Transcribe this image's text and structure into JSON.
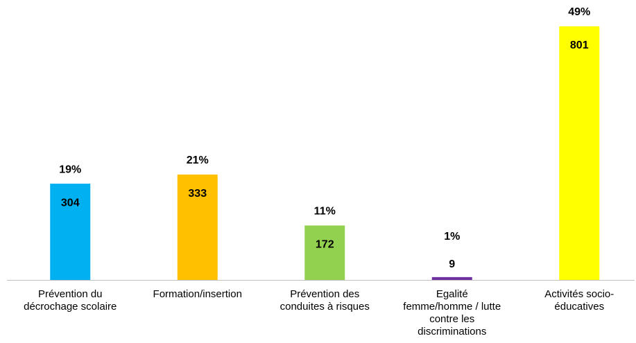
{
  "chart_data": {
    "type": "bar",
    "categories": [
      "Prévention du\ndécrochage scolaire",
      "Formation/insertion",
      "Prévention des\nconduites à risques",
      "Egalité\nfemme/homme / lutte\ncontre les\ndiscriminations",
      "Activités socio-\néducatives"
    ],
    "values": [
      304,
      333,
      172,
      9,
      801
    ],
    "colors": [
      "#00b0f0",
      "#ffc000",
      "#92d050",
      "#7030a0",
      "#ffff00"
    ],
    "shares": {
      "values": [
        19,
        21,
        11,
        1,
        49
      ],
      "value_labels": [
        "19%",
        "21%",
        "11%",
        "1%",
        "49%"
      ]
    }
  }
}
